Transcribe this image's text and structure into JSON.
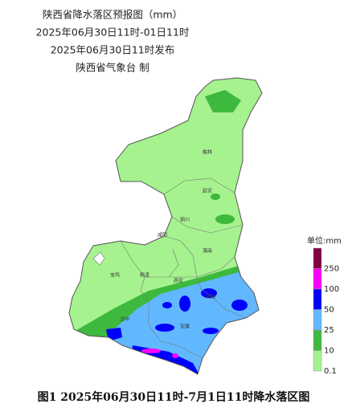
{
  "header": {
    "title": "陕西省降水落区预报图（mm）",
    "period": "2025年06月30日11时-01日11时",
    "issued": "2025年06月30日11时发布",
    "producer": "陕西省气象台 制"
  },
  "cities": [
    {
      "name": "榆林"
    },
    {
      "name": "延安"
    },
    {
      "name": "铜川"
    },
    {
      "name": "咸阳"
    },
    {
      "name": "渭南"
    },
    {
      "name": "宝鸡"
    },
    {
      "name": "杨凌"
    },
    {
      "name": "西安"
    },
    {
      "name": "商洛"
    },
    {
      "name": "汉中"
    },
    {
      "name": "安康"
    }
  ],
  "legend": {
    "unit": "单位:mm",
    "levels": [
      {
        "label": "250",
        "color": "#800040"
      },
      {
        "label": "100",
        "color": "#fa00fa"
      },
      {
        "label": "50",
        "color": "#0000fe"
      },
      {
        "label": "25",
        "color": "#61b8ff"
      },
      {
        "label": "10",
        "color": "#3db93d"
      },
      {
        "label": "0.1",
        "color": "#a6f28f"
      }
    ]
  },
  "caption": "图1  2025年06月30日11时-7月1日11时降水落区图"
}
